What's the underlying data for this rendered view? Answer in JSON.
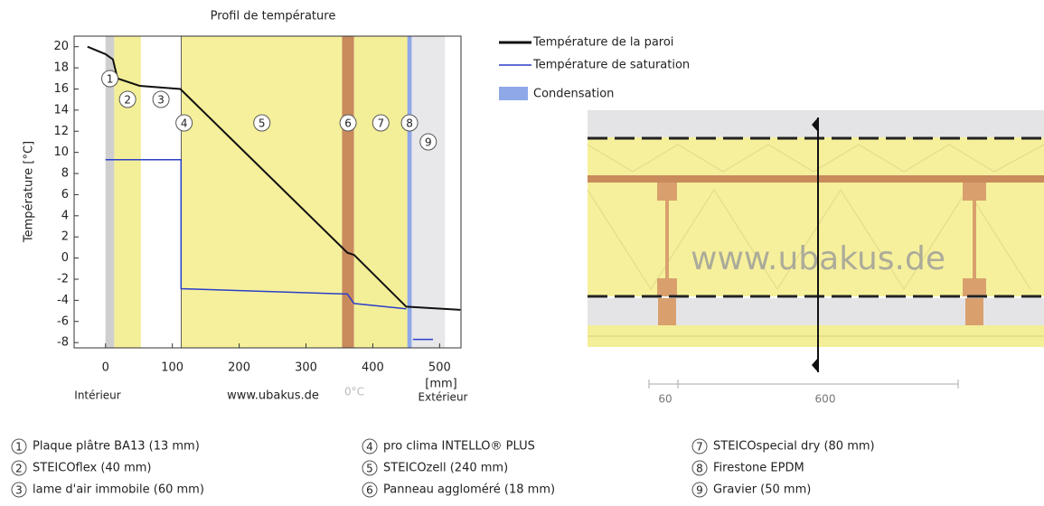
{
  "chart_data": {
    "type": "line",
    "title": "Profil de température",
    "y_label": "Température [°C]",
    "x_unit": "[mm]",
    "x_left_label": "Intérieur",
    "x_right_label": "Extérieur",
    "watermark": "www.ubakus.de",
    "zero_label": "0°C",
    "xlim": [
      -47,
      532
    ],
    "ylim": [
      -8.5,
      21
    ],
    "xticks": [
      0,
      100,
      200,
      300,
      400,
      500
    ],
    "yticks": [
      -8,
      -6,
      -4,
      -2,
      0,
      2,
      4,
      6,
      8,
      10,
      12,
      14,
      16,
      18,
      20
    ],
    "series": [
      {
        "name": "Température de la paroi",
        "color": "#111111",
        "x": [
          -27,
          0,
          11,
          18,
          51,
          112,
          362,
          372,
          450,
          531
        ],
        "values": [
          20,
          19.3,
          18.8,
          17,
          16.3,
          16,
          0.5,
          0.3,
          -4.6,
          -4.9
        ]
      },
      {
        "name": "Température de saturation",
        "color": "#2b3fc9",
        "x": [
          0,
          113,
          113,
          362,
          372,
          450,
          458,
          460,
          490
        ],
        "values": [
          9.3,
          9.3,
          -2.9,
          -3.4,
          -4.3,
          -4.8,
          null,
          -7.7,
          -7.7
        ]
      }
    ],
    "condensation": {
      "name": "Condensation",
      "color": "#8fa8e8",
      "x": [
        452,
        458
      ]
    },
    "layers": [
      {
        "number": 1,
        "name": "Plaque plâtre BA13 (13 mm)",
        "x": [
          0,
          13
        ],
        "color": "#cfcfcf"
      },
      {
        "number": 2,
        "name": "STEICOflex (40 mm)",
        "x": [
          13,
          53
        ],
        "color": "#f3ee98"
      },
      {
        "number": 3,
        "name": "lame d'air immobile (60 mm)",
        "x": [
          53,
          113
        ],
        "color": "#ffffff"
      },
      {
        "number": 4,
        "name": "pro clima INTELLO® PLUS",
        "x": [
          113,
          114
        ],
        "color": "#222222"
      },
      {
        "number": 5,
        "name": "STEICOzell (240 mm)",
        "x": [
          114,
          354
        ],
        "color": "#f6f09c"
      },
      {
        "number": 6,
        "name": "Panneau aggloméré (18 mm)",
        "x": [
          354,
          372
        ],
        "color": "#c98a5c"
      },
      {
        "number": 7,
        "name": "STEICOspecial dry (80 mm)",
        "x": [
          372,
          452
        ],
        "color": "#f3ee98"
      },
      {
        "number": 8,
        "name": "Firestone EPDM",
        "x": [
          452,
          458
        ],
        "color": "#5b7fd6"
      },
      {
        "number": 9,
        "name": "Gravier (50 mm)",
        "x": [
          458,
          508
        ],
        "color": "#e8e8ea"
      }
    ]
  },
  "diagram": {
    "watermark": "www.ubakus.de",
    "dim_left": "60",
    "dim_mid": "600"
  }
}
